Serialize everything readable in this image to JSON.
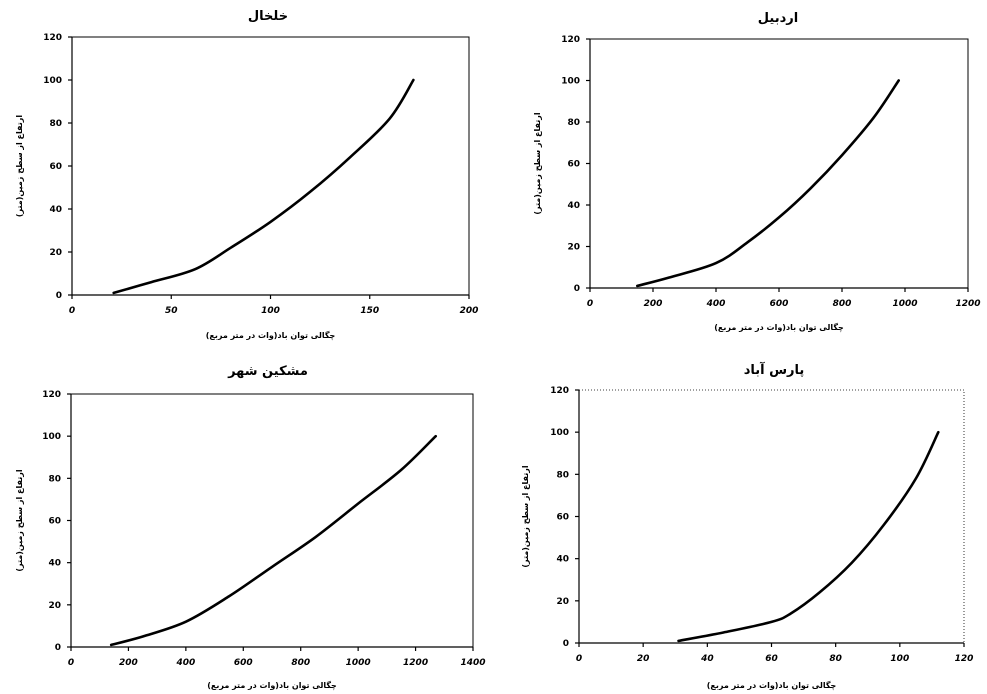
{
  "chart_data": [
    {
      "type": "line",
      "title": "خلخال",
      "xlabel": "چگالی توان باد(وات در متر مربع)",
      "ylabel": "ارتفاع از سطح زمین(متر)",
      "xlim": [
        0,
        200
      ],
      "ylim": [
        0,
        120
      ],
      "xticks": [
        0,
        50,
        100,
        150,
        200
      ],
      "yticks": [
        0,
        20,
        40,
        60,
        80,
        100,
        120
      ],
      "x": [
        21,
        40,
        62,
        80,
        100,
        120,
        140,
        160,
        172
      ],
      "y": [
        1,
        6,
        12,
        22,
        34,
        48,
        64,
        82,
        100
      ]
    },
    {
      "type": "line",
      "title": "اردبیل",
      "xlabel": "چگالی توان باد(وات در متر مربع)",
      "ylabel": "ارتفاع از سطح زمین(متر)",
      "xlim": [
        0,
        1200
      ],
      "ylim": [
        0,
        120
      ],
      "xticks": [
        0,
        200,
        400,
        600,
        800,
        1000,
        1200
      ],
      "yticks": [
        0,
        20,
        40,
        60,
        80,
        100,
        120
      ],
      "x": [
        150,
        250,
        400,
        500,
        600,
        700,
        800,
        900,
        980
      ],
      "y": [
        1,
        5,
        12,
        22,
        34,
        48,
        64,
        82,
        100
      ]
    },
    {
      "type": "line",
      "title": "مشکین شهر",
      "xlabel": "چگالی توان باد(وات در متر مربع)",
      "ylabel": "ارتفاع از سطح زمین(متر)",
      "xlim": [
        0,
        1400
      ],
      "ylim": [
        0,
        120
      ],
      "xticks": [
        0,
        200,
        400,
        600,
        800,
        1000,
        1200,
        1400
      ],
      "yticks": [
        0,
        20,
        40,
        60,
        80,
        100,
        120
      ],
      "x": [
        140,
        250,
        400,
        550,
        700,
        850,
        1000,
        1150,
        1270
      ],
      "y": [
        1,
        5,
        12,
        24,
        38,
        52,
        68,
        84,
        100
      ]
    },
    {
      "type": "line",
      "title": "پارس آباد",
      "xlabel": "چگالی توان باد(وات در متر مربع)",
      "ylabel": "ارتفاع از سطح زمین(متر)",
      "xlim": [
        0,
        120
      ],
      "ylim": [
        0,
        120
      ],
      "xticks": [
        0,
        20,
        40,
        60,
        80,
        100,
        120
      ],
      "yticks": [
        0,
        20,
        40,
        60,
        80,
        100,
        120
      ],
      "x": [
        31,
        45,
        60,
        66,
        75,
        85,
        95,
        105,
        112
      ],
      "y": [
        1,
        5,
        10,
        14,
        24,
        38,
        56,
        78,
        100
      ]
    }
  ]
}
